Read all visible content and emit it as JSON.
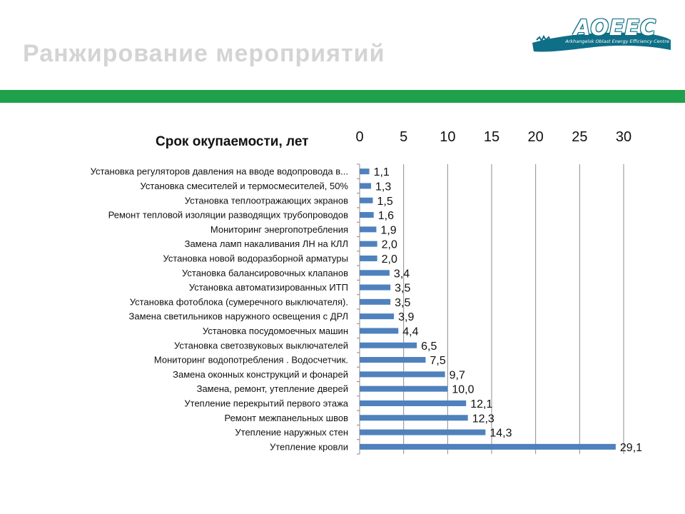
{
  "slide": {
    "title": "Ранжирование мероприятий"
  },
  "logo": {
    "name": "AOEEC",
    "subtitle": "Arkhangelsk Oblast Energy Efficiency Centre",
    "color": "#0f6f86"
  },
  "colors": {
    "band": "#1fa04a",
    "bar": "#4f81bd"
  },
  "chart_data": {
    "type": "bar",
    "orientation": "horizontal",
    "title": "Срок окупаемости, лет",
    "xlim": [
      0,
      30
    ],
    "ticks": [
      "0",
      "5",
      "10",
      "15",
      "20",
      "25",
      "30"
    ],
    "grid": true,
    "categories": [
      "Установка регуляторов давления на вводе водопровода в...",
      "Установка  смесителей  и термосмесителей, 50%",
      "Установка теплоотражающих экранов",
      "Ремонт тепловой изоляции разводящих трубопроводов",
      "Мониторинг энергопотребления",
      "Замена ламп накаливания ЛН на  КЛЛ",
      "Установка новой водоразборной арматуры",
      "Установка балансировочных клапанов",
      "Установка автоматизированных ИТП",
      "Установка фотоблока (сумеречного выключателя).",
      "Замена светильников  наружного освещения с  ДРЛ",
      "Установка посудомоечных машин",
      "Установка светозвуковых выключателей",
      "Мониторинг водопотребления . Водосчетчик.",
      "Замена оконных конструкций и фонарей",
      "Замена, ремонт,  утепление дверей",
      "Утепление перекрытий первого этажа",
      "Ремонт межпанельных швов",
      "Утепление наружных стен",
      "Утепление кровли"
    ],
    "values": [
      1.1,
      1.3,
      1.5,
      1.6,
      1.9,
      2.0,
      2.0,
      3.4,
      3.5,
      3.5,
      3.9,
      4.4,
      6.5,
      7.5,
      9.7,
      10.0,
      12.1,
      12.3,
      14.3,
      29.1
    ],
    "value_labels": [
      "1,1",
      "1,3",
      "1,5",
      "1,6",
      "1,9",
      "2,0",
      "2,0",
      "3,4",
      "3,5",
      "3,5",
      "3,9",
      "4,4",
      "6,5",
      "7,5",
      "9,7",
      "10,0",
      "12,1",
      "12,3",
      "14,3",
      "29,1"
    ]
  }
}
